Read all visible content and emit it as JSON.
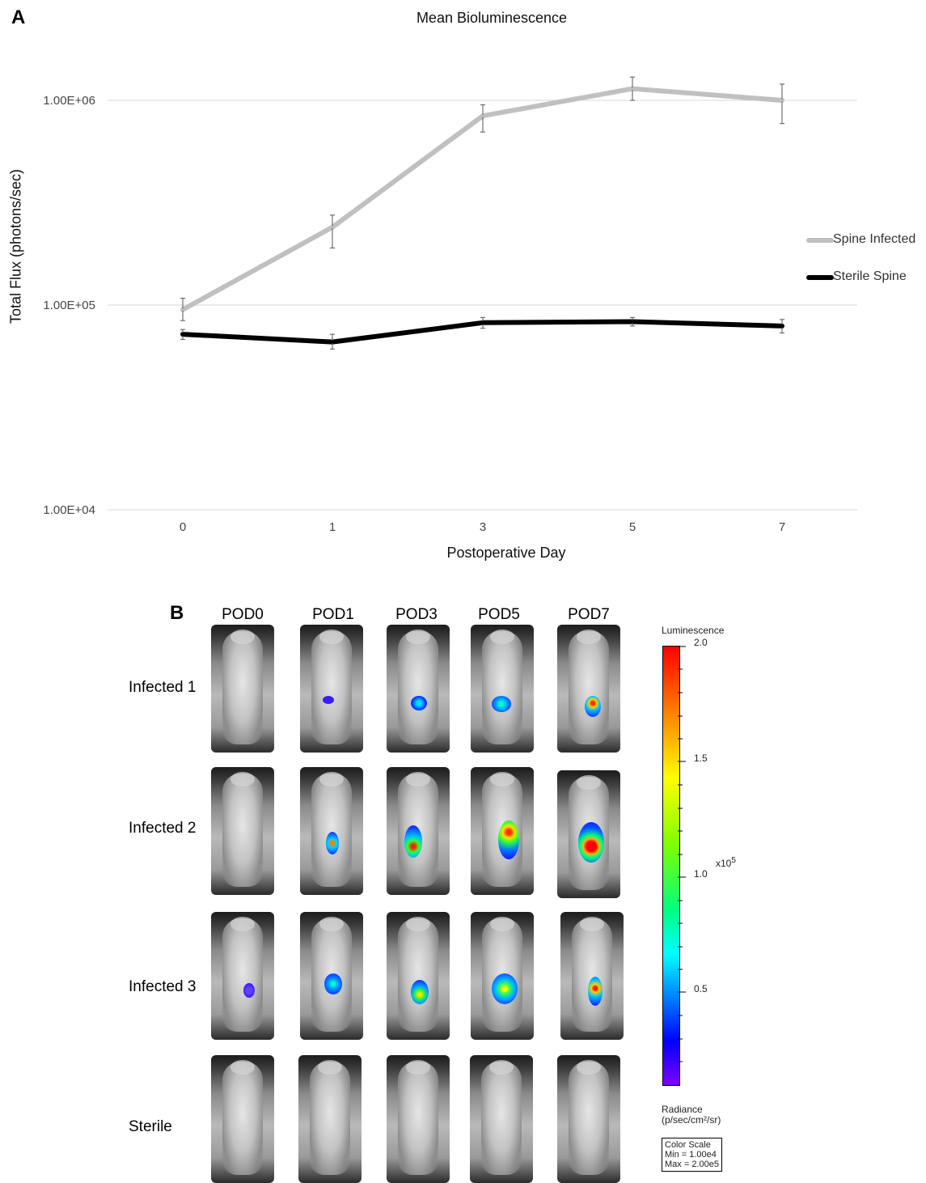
{
  "panel_a_label": "A",
  "panel_b_label": "B",
  "chart_data": {
    "type": "line",
    "title": "Mean Bioluminescence",
    "xlabel": "Postoperative Day",
    "ylabel": "Total Flux (photons/sec)",
    "yscale": "log",
    "ylim": [
      10000,
      2000000
    ],
    "ytick_labels": [
      "1.00E+06",
      "1.00E+05",
      "1.00E+04"
    ],
    "ytick_values": [
      1000000,
      100000,
      10000
    ],
    "categories": [
      "0",
      "1",
      "3",
      "5",
      "7"
    ],
    "grid": "horizontal",
    "legend_position": "right",
    "series": [
      {
        "name": "Spine Infected",
        "color": "#c0c0c0",
        "values": [
          95000,
          240000,
          840000,
          1140000,
          1000000
        ],
        "err_low": [
          84000,
          190000,
          700000,
          1000000,
          770000
        ],
        "err_high": [
          108000,
          275000,
          950000,
          1300000,
          1200000
        ]
      },
      {
        "name": "Sterile Spine",
        "color": "#000000",
        "values": [
          72000,
          66000,
          82000,
          83000,
          79000
        ],
        "err_low": [
          68000,
          61000,
          77000,
          79000,
          73000
        ],
        "err_high": [
          76000,
          72000,
          87000,
          87000,
          85000
        ]
      }
    ]
  },
  "grid": {
    "columns": [
      "POD0",
      "POD1",
      "POD3",
      "POD5",
      "POD7"
    ],
    "rows": [
      "Infected 1",
      "Infected 2",
      "Infected 3",
      "Sterile"
    ]
  },
  "colorbar": {
    "title": "Luminescence",
    "ticks": [
      "2.0",
      "1.5",
      "1.0",
      "0.5"
    ],
    "multiplier_base": "x10",
    "multiplier_exp": "5",
    "radiance_line1": "Radiance",
    "radiance_line2": "(p/sec/cm²/sr)",
    "scale_line1": "Color Scale",
    "scale_line2": "Min = 1.00e4",
    "scale_line3": "Max = 2.00e5"
  }
}
